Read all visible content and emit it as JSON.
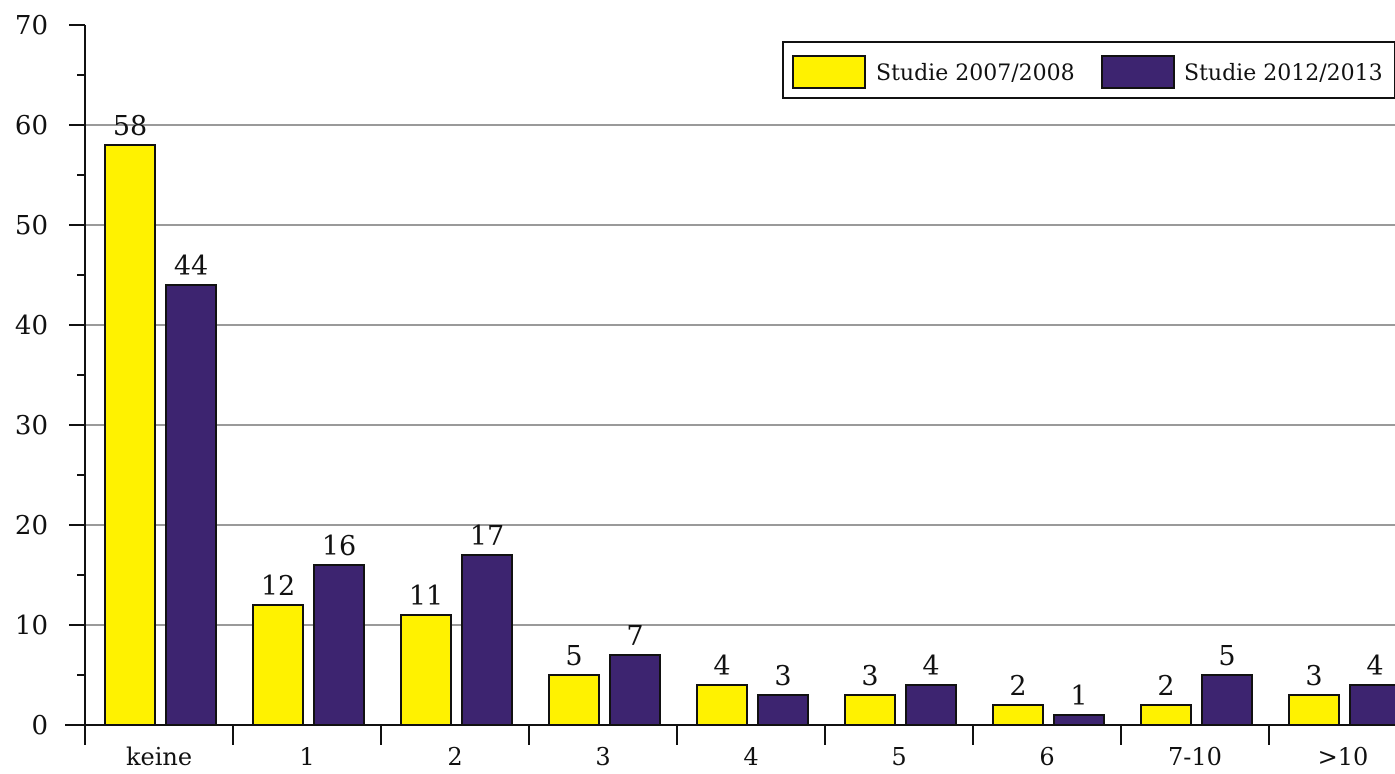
{
  "chart_data": {
    "type": "bar",
    "title": "",
    "xlabel": "",
    "ylabel": "",
    "ylim": [
      0,
      70
    ],
    "yticks": [
      0,
      10,
      20,
      30,
      40,
      50,
      60,
      70
    ],
    "grid": true,
    "legend_position": "top-right",
    "categories": [
      "keine",
      "1",
      "2",
      "3",
      "4",
      "5",
      "6",
      "7-10",
      ">10"
    ],
    "series": [
      {
        "name": "Studie 2007/2008",
        "color": "#fff200",
        "values": [
          58,
          12,
          11,
          5,
          4,
          3,
          2,
          2,
          3
        ]
      },
      {
        "name": "Studie 2012/2013",
        "color": "#3d2470",
        "values": [
          44,
          16,
          17,
          7,
          3,
          4,
          1,
          5,
          4
        ]
      }
    ]
  }
}
